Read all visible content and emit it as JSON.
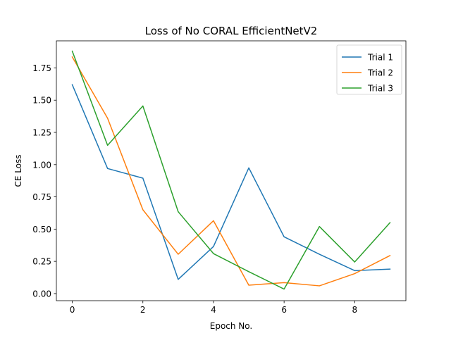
{
  "chart_data": {
    "type": "line",
    "title": "Loss of No CORAL EfficientNetV2",
    "xlabel": "Epoch No.",
    "ylabel": "CE Loss",
    "x": [
      0,
      1,
      2,
      3,
      4,
      5,
      6,
      7,
      8,
      9
    ],
    "xlim": [
      -0.45,
      9.45
    ],
    "ylim": [
      -0.055,
      1.96
    ],
    "xticks": [
      0,
      2,
      4,
      6,
      8
    ],
    "yticks": [
      0.0,
      0.25,
      0.5,
      0.75,
      1.0,
      1.25,
      1.5,
      1.75
    ],
    "ytick_labels": [
      "0.00",
      "0.25",
      "0.50",
      "0.75",
      "1.00",
      "1.25",
      "1.50",
      "1.75"
    ],
    "grid": false,
    "legend_position": "top-right",
    "series": [
      {
        "name": "Trial 1",
        "color": "#1f77b4",
        "values": [
          1.62,
          0.97,
          0.895,
          0.11,
          0.365,
          0.975,
          0.44,
          0.305,
          0.178,
          0.19
        ]
      },
      {
        "name": "Trial 2",
        "color": "#ff7f0e",
        "values": [
          1.835,
          1.36,
          0.65,
          0.305,
          0.565,
          0.065,
          0.085,
          0.06,
          0.155,
          0.295
        ]
      },
      {
        "name": "Trial 3",
        "color": "#2ca02c",
        "values": [
          1.88,
          1.15,
          1.455,
          0.635,
          0.31,
          0.17,
          0.035,
          0.52,
          0.245,
          0.55
        ]
      }
    ]
  }
}
